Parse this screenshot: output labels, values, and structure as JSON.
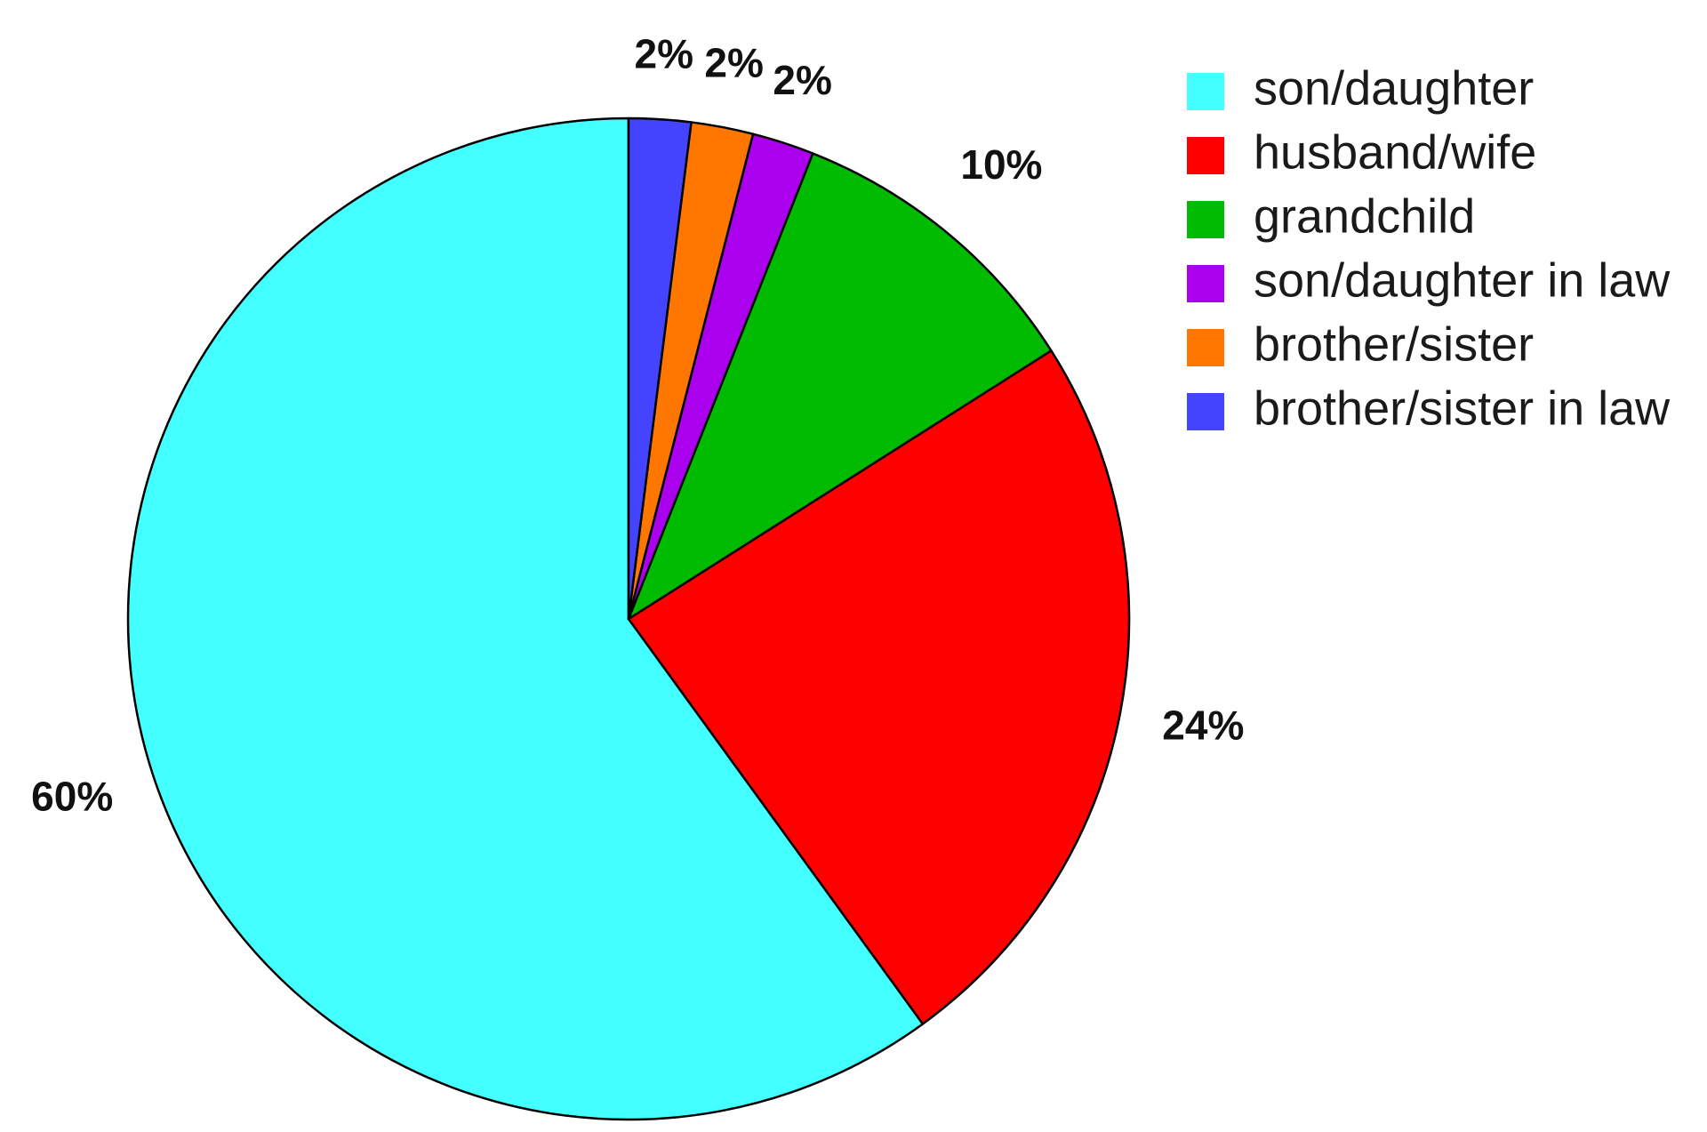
{
  "chart_data": {
    "type": "pie",
    "start_angle_deg": 0,
    "direction": "clockwise",
    "legend_position": "top-right",
    "slices": [
      {
        "name": "son/daughter",
        "value": 60,
        "label": "60%",
        "color": "#44FFFF"
      },
      {
        "name": "husband/wife",
        "value": 24,
        "label": "24%",
        "color": "#FF0000"
      },
      {
        "name": "grandchild",
        "value": 10,
        "label": "10%",
        "color": "#00BB00"
      },
      {
        "name": "son/daughter in law",
        "value": 2,
        "label": "2%",
        "color": "#AA00EE"
      },
      {
        "name": "brother/sister",
        "value": 2,
        "label": "2%",
        "color": "#FF7700"
      },
      {
        "name": "brother/sister in law",
        "value": 2,
        "label": "2%",
        "color": "#4444FF"
      }
    ]
  }
}
